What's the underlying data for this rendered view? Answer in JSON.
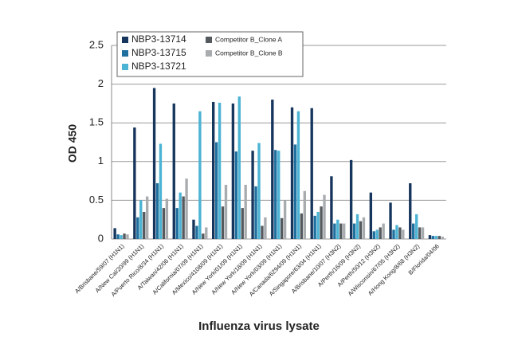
{
  "chart_data": {
    "type": "bar",
    "x_label": "Influenza virus lysate",
    "y_label": "OD 450",
    "categories": [
      "A/Brisbane/59/07 (H1N1)",
      "A/New Cal/20/99 (H1N1)",
      "A/Puerto Rico/8/34 (H1N1)",
      "A/Taiwan/42/06 (H1N1)",
      "A/California/07/09 (H1N1)",
      "A/Mexico/4108/09 (H1N1)",
      "A/New York/01/09 (H1N1)",
      "A/New York/18/09 (H1N1)",
      "A/New York/03/09 (H1N1)",
      "A/Canada/6294/09 (H1N1)",
      "A/Singapore/63/04 (H1N1)",
      "A/Brisbane/10/07 (H3N2)",
      "A/Perth/16/09 (H3N2)",
      "A/Perth/50/12 (H3N2)",
      "A/Wisconsin/67/05 (H3N2)",
      "A/Hong Kong/8/68 (H3N2)",
      "B/Florida/04/06"
    ],
    "series": [
      {
        "name": "NBP3-13714",
        "color": "#17365d",
        "values": [
          0.14,
          1.44,
          1.95,
          1.75,
          0.25,
          1.77,
          1.75,
          1.14,
          1.8,
          1.7,
          1.69,
          0.81,
          1.02,
          0.6,
          0.47,
          0.72,
          0.05
        ]
      },
      {
        "name": "NBP3-13715",
        "color": "#1f6f9f",
        "values": [
          0.06,
          0.28,
          0.72,
          0.4,
          0.17,
          1.25,
          1.13,
          0.68,
          1.15,
          1.22,
          0.3,
          0.2,
          0.2,
          0.1,
          0.12,
          0.2,
          0.04
        ]
      },
      {
        "name": "NBP3-13721",
        "color": "#4bb3d3",
        "values": [
          0.05,
          0.5,
          1.23,
          0.6,
          1.65,
          1.76,
          1.84,
          1.24,
          1.14,
          1.65,
          0.35,
          0.25,
          0.32,
          0.12,
          0.18,
          0.32,
          0.04
        ]
      },
      {
        "name": "Competitor B_Clone A",
        "color": "#555a5e",
        "values": [
          0.07,
          0.35,
          0.4,
          0.55,
          0.07,
          0.42,
          0.4,
          0.17,
          0.27,
          0.33,
          0.42,
          0.2,
          0.23,
          0.15,
          0.15,
          0.15,
          0.04
        ]
      },
      {
        "name": "Competitor B_Clone B",
        "color": "#a9acaf",
        "values": [
          0.06,
          0.55,
          0.52,
          0.78,
          0.15,
          0.7,
          0.7,
          0.28,
          0.5,
          0.62,
          0.57,
          0.2,
          0.28,
          0.2,
          0.12,
          0.15,
          0.03
        ]
      }
    ],
    "ylim": [
      0,
      2.5
    ],
    "yticks": [
      0,
      0.5,
      1,
      1.5,
      2,
      2.5
    ],
    "grid": true,
    "legend": "top-left"
  }
}
